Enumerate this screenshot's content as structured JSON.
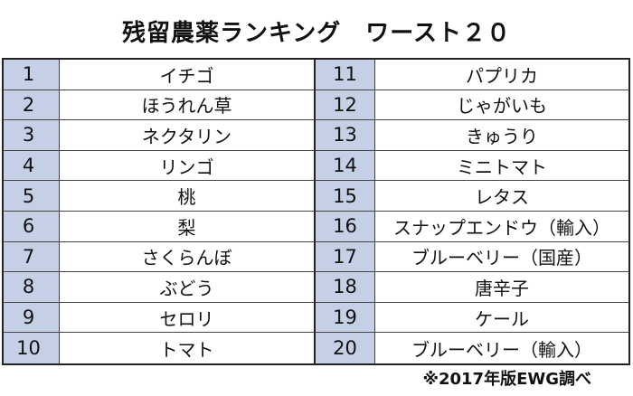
{
  "title": "残留農薬ランキング　ワースト２０",
  "left": [
    {
      "rank": "1",
      "name": "イチゴ"
    },
    {
      "rank": "2",
      "name": "ほうれん草"
    },
    {
      "rank": "3",
      "name": "ネクタリン"
    },
    {
      "rank": "4",
      "name": "リンゴ"
    },
    {
      "rank": "5",
      "name": "桃"
    },
    {
      "rank": "6",
      "name": "梨"
    },
    {
      "rank": "7",
      "name": "さくらんぼ"
    },
    {
      "rank": "8",
      "name": "ぶどう"
    },
    {
      "rank": "9",
      "name": "セロリ"
    },
    {
      "rank": "10",
      "name": "トマト"
    }
  ],
  "right": [
    {
      "rank": "11",
      "name": "パプリカ"
    },
    {
      "rank": "12",
      "name": "じゃがいも"
    },
    {
      "rank": "13",
      "name": "きゅうり"
    },
    {
      "rank": "14",
      "name": "ミニトマト"
    },
    {
      "rank": "15",
      "name": "レタス"
    },
    {
      "rank": "16",
      "name": "スナップエンドウ（輸入）"
    },
    {
      "rank": "17",
      "name": "ブルーベリー（国産）"
    },
    {
      "rank": "18",
      "name": "唐辛子"
    },
    {
      "rank": "19",
      "name": "ケール"
    },
    {
      "rank": "20",
      "name": "ブルーベリー（輸入）"
    }
  ],
  "note": "※2017年版EWG調べ",
  "colors": {
    "rank_cell": "#c5d0e6",
    "border": "#222222"
  }
}
